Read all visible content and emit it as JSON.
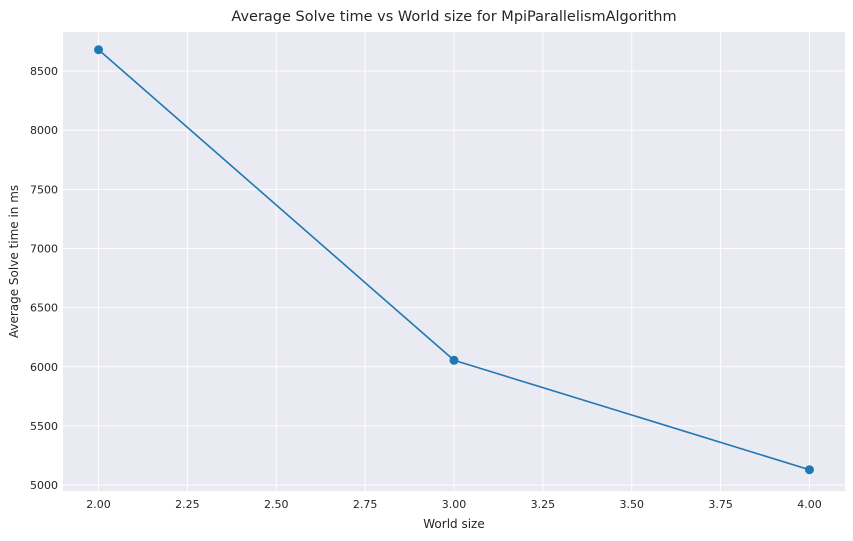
{
  "chart_data": {
    "type": "line",
    "title": "Average Solve time vs World size for MpiParallelismAlgorithm",
    "xlabel": "World size",
    "ylabel": "Average Solve time in ms",
    "x": [
      2,
      3,
      4
    ],
    "series": [
      {
        "values": [
          8680,
          6055,
          5130
        ],
        "color": "#1f77b4",
        "marker": "circle"
      }
    ],
    "xlim": [
      1.9,
      4.1
    ],
    "ylim": [
      4950,
      8830
    ],
    "xticks": [
      2.0,
      2.25,
      2.5,
      2.75,
      3.0,
      3.25,
      3.5,
      3.75,
      4.0
    ],
    "xtick_labels": [
      "2.00",
      "2.25",
      "2.50",
      "2.75",
      "3.00",
      "3.25",
      "3.50",
      "3.75",
      "4.00"
    ],
    "yticks": [
      5000,
      5500,
      6000,
      6500,
      7000,
      7500,
      8000,
      8500
    ],
    "ytick_labels": [
      "5000",
      "5500",
      "6000",
      "6500",
      "7000",
      "7500",
      "8000",
      "8500"
    ],
    "grid": true,
    "background_color": "#eaeaf2",
    "grid_color": "#ffffff",
    "text_color": "#262626"
  }
}
